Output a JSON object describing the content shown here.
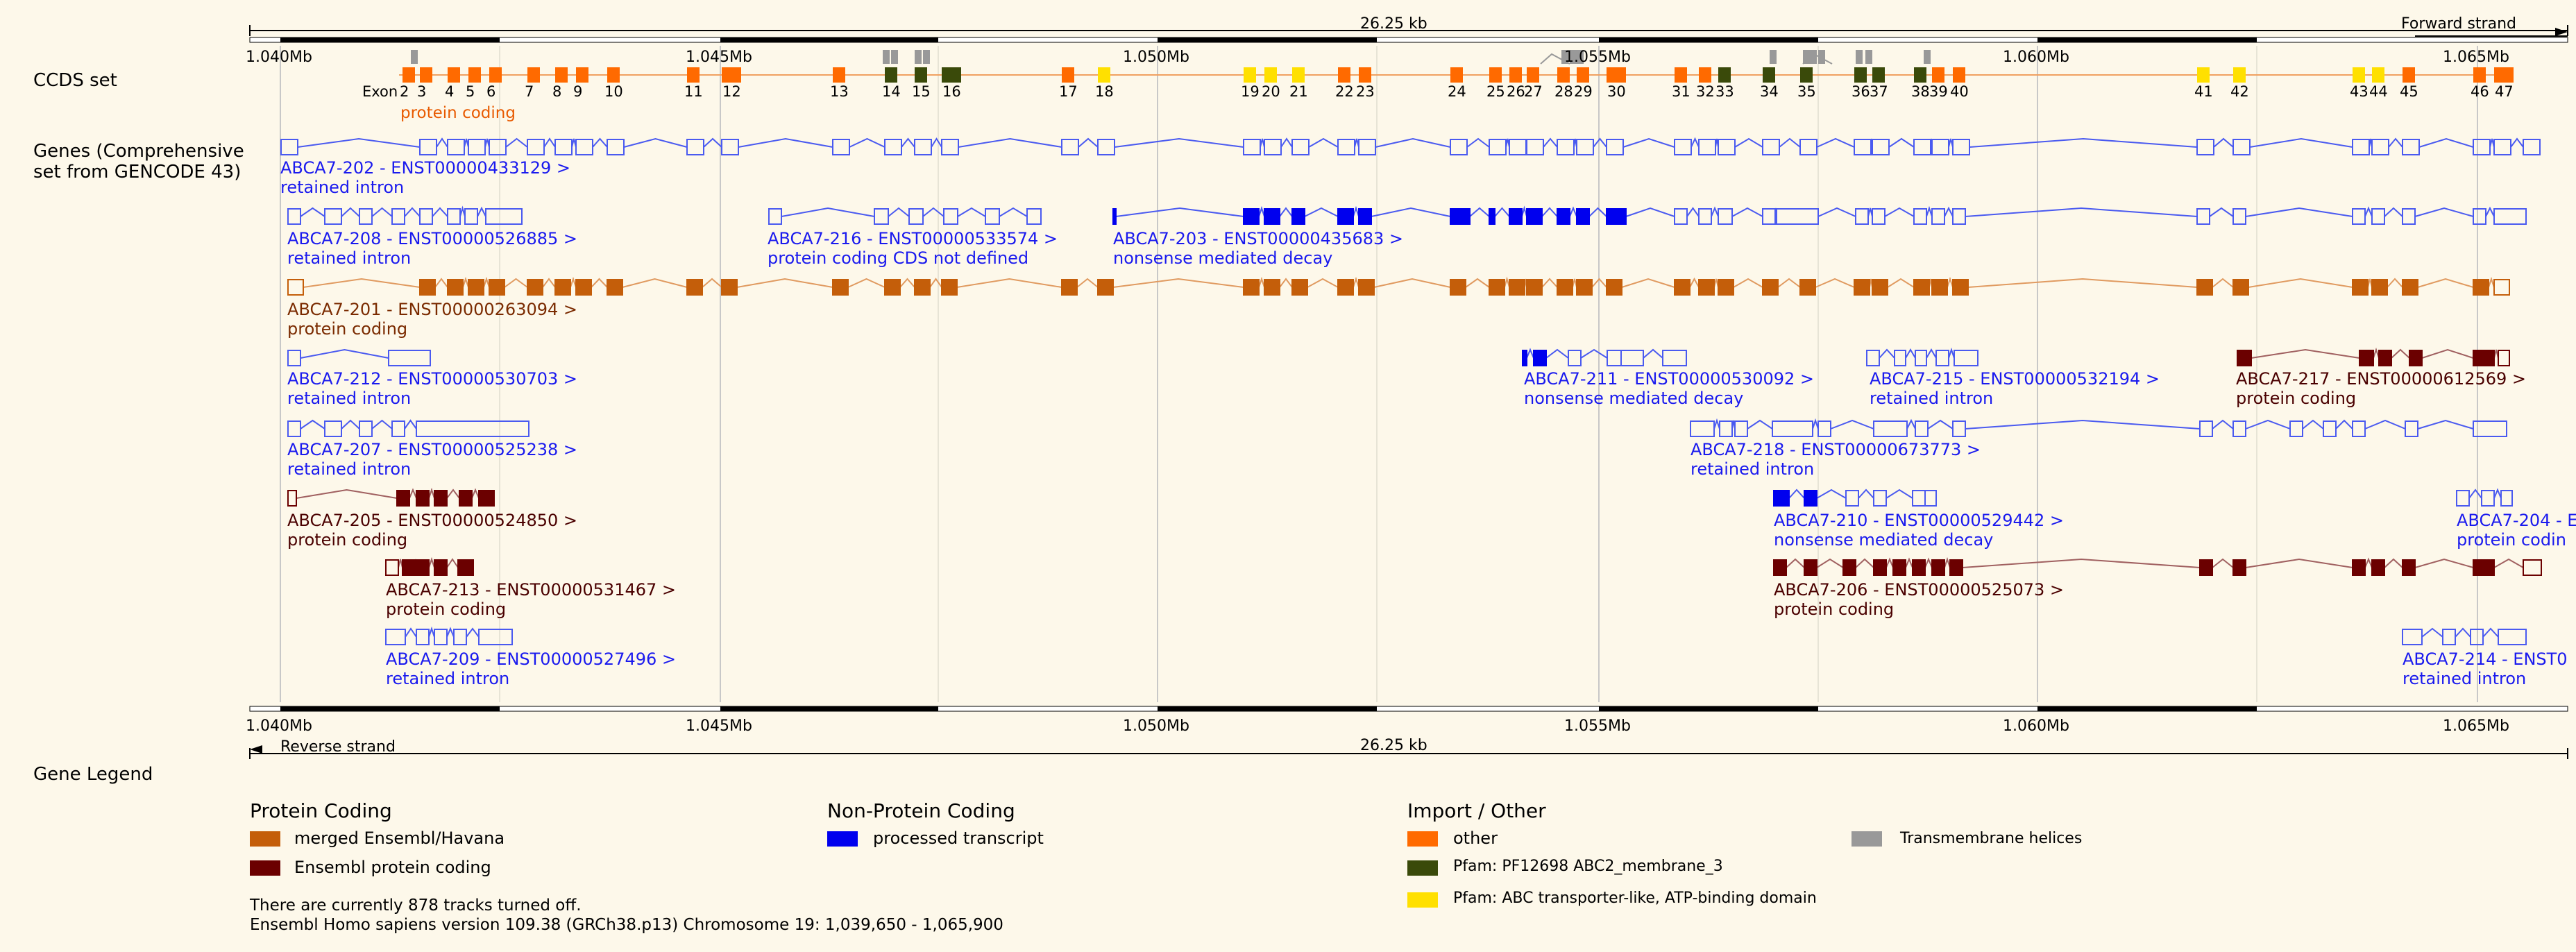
{
  "colors": {
    "bg": "#fdf8ea",
    "merged": "#c45e0a",
    "ensembl_pc": "#6b0000",
    "processed": "#0000ee",
    "other": "#ff6a00",
    "pfam_abc2": "#3a4a0a",
    "pfam_abc_atp": "#ffe000",
    "tm": "#999999",
    "retained": "#4a5af0",
    "pc_text": "#7a2a00",
    "dark_pc_text": "#4a0000"
  },
  "header": {
    "scale_label": "26.25 kb",
    "forward_label": "Forward strand",
    "ticks": [
      "1.040Mb",
      "1.045Mb",
      "1.050Mb",
      "1.055Mb",
      "1.060Mb",
      "1.065Mb"
    ]
  },
  "footer_scale": {
    "scale_label": "26.25 kb",
    "reverse_label": "Reverse strand",
    "ticks": [
      "1.040Mb",
      "1.045Mb",
      "1.050Mb",
      "1.055Mb",
      "1.060Mb",
      "1.065Mb"
    ]
  },
  "tracks": {
    "ccds_label": "CCDS set",
    "genes_label": "Genes (Comprehensive set from GENCODE 43)"
  },
  "ccds": {
    "exon_word": "Exon",
    "biotype": "protein coding",
    "exons": [
      {
        "n": "2",
        "type": "other"
      },
      {
        "n": "3",
        "type": "other"
      },
      {
        "n": "4",
        "type": "other"
      },
      {
        "n": "5",
        "type": "other"
      },
      {
        "n": "6",
        "type": "other"
      },
      {
        "n": "7",
        "type": "other"
      },
      {
        "n": "8",
        "type": "other"
      },
      {
        "n": "9",
        "type": "other"
      },
      {
        "n": "10",
        "type": "other"
      },
      {
        "n": "11",
        "type": "other"
      },
      {
        "n": "12",
        "type": "other"
      },
      {
        "n": "13",
        "type": "other"
      },
      {
        "n": "14",
        "type": "abc2"
      },
      {
        "n": "15",
        "type": "abc2"
      },
      {
        "n": "16",
        "type": "abc2"
      },
      {
        "n": "17",
        "type": "other"
      },
      {
        "n": "18",
        "type": "atp"
      },
      {
        "n": "19",
        "type": "atp"
      },
      {
        "n": "20",
        "type": "atp"
      },
      {
        "n": "21",
        "type": "atp"
      },
      {
        "n": "22",
        "type": "other"
      },
      {
        "n": "23",
        "type": "other"
      },
      {
        "n": "24",
        "type": "other"
      },
      {
        "n": "25",
        "type": "other"
      },
      {
        "n": "26",
        "type": "other"
      },
      {
        "n": "27",
        "type": "other"
      },
      {
        "n": "28",
        "type": "other"
      },
      {
        "n": "29",
        "type": "other"
      },
      {
        "n": "30",
        "type": "other"
      },
      {
        "n": "31",
        "type": "other"
      },
      {
        "n": "32",
        "type": "other"
      },
      {
        "n": "33",
        "type": "abc2"
      },
      {
        "n": "34",
        "type": "abc2"
      },
      {
        "n": "35",
        "type": "abc2"
      },
      {
        "n": "36",
        "type": "abc2"
      },
      {
        "n": "37",
        "type": "abc2"
      },
      {
        "n": "38",
        "type": "abc2"
      },
      {
        "n": "39",
        "type": "other"
      },
      {
        "n": "40",
        "type": "other"
      },
      {
        "n": "41",
        "type": "atp"
      },
      {
        "n": "42",
        "type": "atp"
      },
      {
        "n": "43",
        "type": "atp"
      },
      {
        "n": "44",
        "type": "atp"
      },
      {
        "n": "45",
        "type": "other"
      },
      {
        "n": "46",
        "type": "other"
      },
      {
        "n": "47",
        "type": "other"
      }
    ]
  },
  "transcripts": [
    {
      "name": "ABCA7-202 - ENST00000433129 >",
      "biotype": "retained intron",
      "style": "retained"
    },
    {
      "name": "ABCA7-208 - ENST00000526885 >",
      "biotype": "retained intron",
      "style": "retained"
    },
    {
      "name": "ABCA7-216 - ENST00000533574 >",
      "biotype": "protein coding CDS not defined",
      "style": "retained"
    },
    {
      "name": "ABCA7-203 - ENST00000435683 >",
      "biotype": "nonsense mediated decay",
      "style": "nmd"
    },
    {
      "name": "ABCA7-201 - ENST00000263094 >",
      "biotype": "protein coding",
      "style": "merged"
    },
    {
      "name": "ABCA7-212 - ENST00000530703 >",
      "biotype": "retained intron",
      "style": "retained"
    },
    {
      "name": "ABCA7-211 - ENST00000530092 >",
      "biotype": "nonsense mediated decay",
      "style": "nmd"
    },
    {
      "name": "ABCA7-215 - ENST00000532194 >",
      "biotype": "retained intron",
      "style": "retained"
    },
    {
      "name": "ABCA7-217 - ENST00000612569 >",
      "biotype": "protein coding",
      "style": "pc"
    },
    {
      "name": "ABCA7-207 - ENST00000525238 >",
      "biotype": "retained intron",
      "style": "retained"
    },
    {
      "name": "ABCA7-218 - ENST00000673773 >",
      "biotype": "retained intron",
      "style": "retained"
    },
    {
      "name": "ABCA7-205 - ENST00000524850 >",
      "biotype": "protein coding",
      "style": "pc"
    },
    {
      "name": "ABCA7-210 - ENST00000529442 >",
      "biotype": "nonsense mediated decay",
      "style": "nmd"
    },
    {
      "name": "ABCA7-204 - E",
      "biotype": "protein codin",
      "style": "nmd"
    },
    {
      "name": "ABCA7-213 - ENST00000531467 >",
      "biotype": "protein coding",
      "style": "pc"
    },
    {
      "name": "ABCA7-206 - ENST00000525073 >",
      "biotype": "protein coding",
      "style": "pc"
    },
    {
      "name": "ABCA7-209 - ENST00000527496 >",
      "biotype": "retained intron",
      "style": "retained"
    },
    {
      "name": "ABCA7-214 - ENST0",
      "biotype": "retained intron",
      "style": "retained"
    }
  ],
  "legend": {
    "title": "Gene Legend",
    "groups": [
      {
        "heading": "Protein Coding",
        "items": [
          {
            "label": "merged Ensembl/Havana",
            "color": "#c45e0a"
          },
          {
            "label": "Ensembl protein coding",
            "color": "#6b0000"
          }
        ]
      },
      {
        "heading": "Non-Protein Coding",
        "items": [
          {
            "label": "processed transcript",
            "color": "#0000ee"
          }
        ]
      },
      {
        "heading": "Import / Other",
        "items": [
          {
            "label": "other",
            "color": "#ff6a00"
          },
          {
            "label": "Pfam: PF12698  ABC2_membrane_3",
            "color": "#3a4a0a"
          },
          {
            "label": "Pfam: ABC transporter-like, ATP-binding domain",
            "color": "#ffe000"
          },
          {
            "label": "Transmembrane helices",
            "color": "#999999"
          }
        ]
      }
    ]
  },
  "footer": {
    "tracks_off": "There are currently 878 tracks turned off.",
    "version": "Ensembl Homo sapiens version 109.38 (GRCh38.p13) Chromosome 19: 1,039,650 - 1,065,900"
  }
}
